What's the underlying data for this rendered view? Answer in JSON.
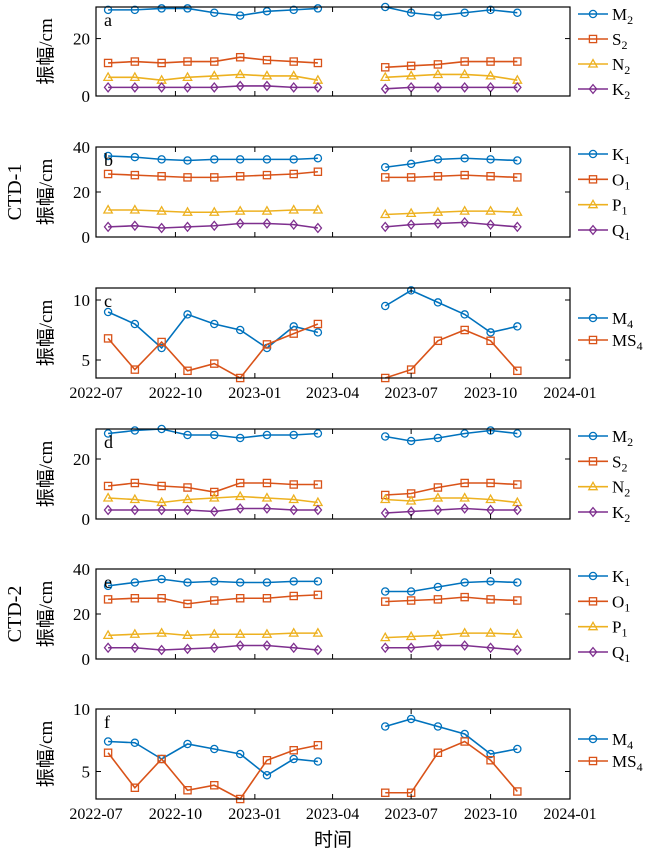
{
  "figure": {
    "group_labels": [
      {
        "panel": "b",
        "text": "CTD-1"
      },
      {
        "panel": "e",
        "text": "CTD-2"
      }
    ],
    "xlabel": "时间",
    "x_ticks": [
      "2022-07",
      "2022-10",
      "2023-01",
      "2023-04",
      "2023-07",
      "2023-10",
      "2024-01"
    ],
    "x_tick_dates": [
      "2022-07-01",
      "2022-10-01",
      "2023-01-01",
      "2023-04-01",
      "2023-07-01",
      "2023-10-01",
      "2024-01-01"
    ],
    "colors": {
      "blue": "#0072BD",
      "orange": "#D95319",
      "yellow": "#EDB120",
      "purple": "#7E2F8E"
    }
  },
  "chart_data": [
    {
      "type": "line",
      "label": "a",
      "ylabel": "振幅/cm",
      "ylim": [
        0,
        31
      ],
      "y_ticks": [
        0,
        20
      ],
      "x": [
        "2022-07-15",
        "2022-08-15",
        "2022-09-15",
        "2022-10-15",
        "2022-11-15",
        "2022-12-15",
        "2023-01-15",
        "2023-02-15",
        "2023-03-15",
        "2023-06-01",
        "2023-07-01",
        "2023-08-01",
        "2023-09-01",
        "2023-10-01",
        "2023-11-01"
      ],
      "series": [
        {
          "name": "M",
          "sub": "2",
          "color": "blue",
          "marker": "circle",
          "values": [
            30,
            30,
            30.5,
            30.5,
            29,
            28,
            29.5,
            30,
            30.5,
            31,
            29,
            28,
            29,
            30,
            29
          ]
        },
        {
          "name": "S",
          "sub": "2",
          "color": "orange",
          "marker": "square",
          "values": [
            11.5,
            12,
            11.5,
            12,
            12,
            13.5,
            12.5,
            12,
            11.5,
            10,
            10.5,
            11,
            12,
            12,
            12
          ]
        },
        {
          "name": "N",
          "sub": "2",
          "color": "yellow",
          "marker": "triangle",
          "values": [
            6.5,
            6.5,
            5.5,
            6.5,
            7,
            7.5,
            7,
            7,
            5.5,
            6.5,
            7,
            7.5,
            7.5,
            7,
            5.5
          ]
        },
        {
          "name": "K",
          "sub": "2",
          "color": "purple",
          "marker": "diamond",
          "values": [
            3,
            3,
            3,
            3,
            3,
            3.5,
            3.5,
            3,
            3,
            2.5,
            3,
            3,
            3,
            3,
            3
          ]
        }
      ]
    },
    {
      "type": "line",
      "label": "b",
      "ylabel": "振幅/cm",
      "ylim": [
        0,
        40
      ],
      "y_ticks": [
        0,
        20,
        40
      ],
      "x": [
        "2022-07-15",
        "2022-08-15",
        "2022-09-15",
        "2022-10-15",
        "2022-11-15",
        "2022-12-15",
        "2023-01-15",
        "2023-02-15",
        "2023-03-15",
        "2023-06-01",
        "2023-07-01",
        "2023-08-01",
        "2023-09-01",
        "2023-10-01",
        "2023-11-01"
      ],
      "series": [
        {
          "name": "K",
          "sub": "1",
          "color": "blue",
          "marker": "circle",
          "values": [
            36,
            35.5,
            34.5,
            34,
            34.5,
            34.5,
            34.5,
            34.5,
            35,
            31,
            32.5,
            34.5,
            35,
            34.5,
            34
          ]
        },
        {
          "name": "O",
          "sub": "1",
          "color": "orange",
          "marker": "square",
          "values": [
            28,
            27.5,
            27,
            26.5,
            26.5,
            27,
            27.5,
            28,
            29,
            26.5,
            26.5,
            27,
            27.5,
            27,
            26.5
          ]
        },
        {
          "name": "P",
          "sub": "1",
          "color": "yellow",
          "marker": "triangle",
          "values": [
            12,
            12,
            11.5,
            11,
            11,
            11.5,
            11.5,
            12,
            12,
            10,
            10.5,
            11,
            11.5,
            11.5,
            11
          ]
        },
        {
          "name": "Q",
          "sub": "1",
          "color": "purple",
          "marker": "diamond",
          "values": [
            4.5,
            5,
            4,
            4.5,
            5,
            6,
            6,
            5.5,
            4,
            4.5,
            5.5,
            6,
            6.5,
            5.5,
            4.5
          ]
        }
      ]
    },
    {
      "type": "line",
      "label": "c",
      "ylabel": "振幅/cm",
      "ylim": [
        3.5,
        11
      ],
      "y_ticks": [
        5,
        10
      ],
      "x": [
        "2022-07-15",
        "2022-08-15",
        "2022-09-15",
        "2022-10-15",
        "2022-11-15",
        "2022-12-15",
        "2023-01-15",
        "2023-02-15",
        "2023-03-15",
        "2023-06-01",
        "2023-07-01",
        "2023-08-01",
        "2023-09-01",
        "2023-10-01",
        "2023-11-01"
      ],
      "series": [
        {
          "name": "M",
          "sub": "4",
          "color": "blue",
          "marker": "circle",
          "values": [
            9,
            8,
            6,
            8.8,
            8,
            7.5,
            6,
            7.8,
            7.3,
            9.5,
            10.8,
            9.8,
            8.8,
            7.3,
            7.8
          ]
        },
        {
          "name": "MS",
          "sub": "4",
          "color": "orange",
          "marker": "square",
          "values": [
            6.8,
            4.2,
            6.5,
            4.1,
            4.7,
            3.5,
            6.3,
            7.2,
            8,
            3.5,
            4.2,
            6.6,
            7.5,
            6.6,
            4.1
          ]
        }
      ]
    },
    {
      "type": "line",
      "label": "d",
      "ylabel": "振幅/cm",
      "ylim": [
        0,
        30
      ],
      "y_ticks": [
        0,
        20
      ],
      "x": [
        "2022-07-15",
        "2022-08-15",
        "2022-09-15",
        "2022-10-15",
        "2022-11-15",
        "2022-12-15",
        "2023-01-15",
        "2023-02-15",
        "2023-03-15",
        "2023-06-01",
        "2023-07-01",
        "2023-08-01",
        "2023-09-01",
        "2023-10-01",
        "2023-11-01"
      ],
      "series": [
        {
          "name": "M",
          "sub": "2",
          "color": "blue",
          "marker": "circle",
          "values": [
            28.5,
            29.5,
            30,
            28,
            28,
            27,
            28,
            28,
            28.5,
            27.5,
            26,
            27,
            28.5,
            29.5,
            28.5
          ]
        },
        {
          "name": "S",
          "sub": "2",
          "color": "orange",
          "marker": "square",
          "values": [
            11,
            12,
            11,
            10.5,
            9,
            12,
            12,
            11.5,
            11.5,
            8,
            8.5,
            10.5,
            12,
            12,
            11.5
          ]
        },
        {
          "name": "N",
          "sub": "2",
          "color": "yellow",
          "marker": "triangle",
          "values": [
            7,
            6.5,
            5.5,
            6.5,
            7,
            7.5,
            7,
            6.5,
            5.5,
            6.5,
            6,
            7,
            7,
            6.5,
            5.5
          ]
        },
        {
          "name": "K",
          "sub": "2",
          "color": "purple",
          "marker": "diamond",
          "values": [
            3,
            3,
            3,
            3,
            2.5,
            3.5,
            3.5,
            3,
            3,
            2,
            2.5,
            3,
            3.5,
            3,
            3
          ]
        }
      ]
    },
    {
      "type": "line",
      "label": "e",
      "ylabel": "振幅/cm",
      "ylim": [
        0,
        40
      ],
      "y_ticks": [
        0,
        20,
        40
      ],
      "x": [
        "2022-07-15",
        "2022-08-15",
        "2022-09-15",
        "2022-10-15",
        "2022-11-15",
        "2022-12-15",
        "2023-01-15",
        "2023-02-15",
        "2023-03-15",
        "2023-06-01",
        "2023-07-01",
        "2023-08-01",
        "2023-09-01",
        "2023-10-01",
        "2023-11-01"
      ],
      "series": [
        {
          "name": "K",
          "sub": "1",
          "color": "blue",
          "marker": "circle",
          "values": [
            32.5,
            34,
            35.5,
            34,
            34.5,
            34,
            34,
            34.5,
            34.5,
            30,
            30,
            32,
            34,
            34.5,
            34
          ]
        },
        {
          "name": "O",
          "sub": "1",
          "color": "orange",
          "marker": "square",
          "values": [
            26.5,
            27,
            27,
            24.5,
            26,
            27,
            27,
            28,
            28.5,
            25.5,
            26,
            26.5,
            27.5,
            26.5,
            26
          ]
        },
        {
          "name": "P",
          "sub": "1",
          "color": "yellow",
          "marker": "triangle",
          "values": [
            10.5,
            11,
            11.5,
            10.5,
            11,
            11,
            11,
            11.5,
            11.5,
            9.5,
            10,
            10.5,
            11.5,
            11.5,
            11
          ]
        },
        {
          "name": "Q",
          "sub": "1",
          "color": "purple",
          "marker": "diamond",
          "values": [
            5,
            5,
            4,
            4.5,
            5,
            6,
            6,
            5,
            4,
            5,
            5,
            6,
            6,
            5,
            4
          ]
        }
      ]
    },
    {
      "type": "line",
      "label": "f",
      "ylabel": "振幅/cm",
      "ylim": [
        2.8,
        10
      ],
      "y_ticks": [
        5,
        10
      ],
      "x": [
        "2022-07-15",
        "2022-08-15",
        "2022-09-15",
        "2022-10-15",
        "2022-11-15",
        "2022-12-15",
        "2023-01-15",
        "2023-02-15",
        "2023-03-15",
        "2023-06-01",
        "2023-07-01",
        "2023-08-01",
        "2023-09-01",
        "2023-10-01",
        "2023-11-01"
      ],
      "series": [
        {
          "name": "M",
          "sub": "4",
          "color": "blue",
          "marker": "circle",
          "values": [
            7.4,
            7.3,
            6,
            7.2,
            6.8,
            6.4,
            4.7,
            6,
            5.8,
            8.6,
            9.2,
            8.6,
            8,
            6.4,
            6.8
          ]
        },
        {
          "name": "MS",
          "sub": "4",
          "color": "orange",
          "marker": "square",
          "values": [
            6.5,
            3.7,
            6,
            3.5,
            3.9,
            2.8,
            5.9,
            6.7,
            7.1,
            3.3,
            3.3,
            6.5,
            7.4,
            5.9,
            3.4
          ]
        }
      ]
    }
  ]
}
